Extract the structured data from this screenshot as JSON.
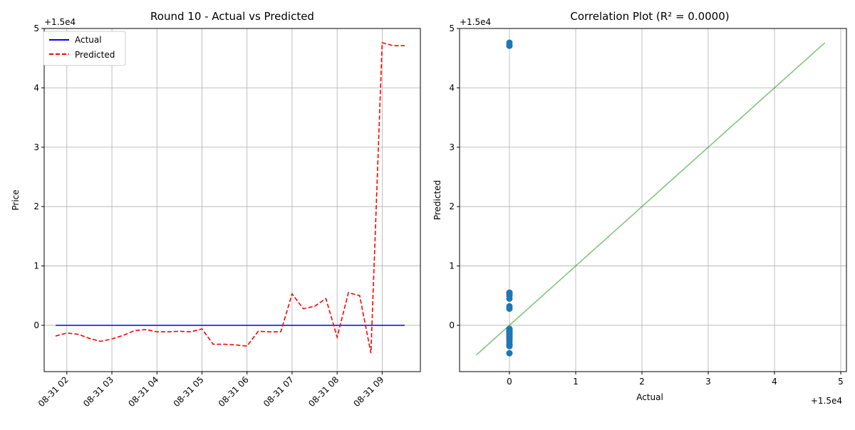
{
  "chart_data": [
    {
      "type": "line",
      "title": "Round 10 - Actual vs Predicted",
      "xlabel": "",
      "ylabel": "Price",
      "offset_label": "+1.5e4",
      "x_tick_labels": [
        "08-31 02",
        "08-31 03",
        "08-31 04",
        "08-31 05",
        "08-31 06",
        "08-31 07",
        "08-31 08",
        "08-31 09"
      ],
      "y_ticks": [
        0,
        1,
        2,
        3,
        4,
        5
      ],
      "ylim": [
        -0.78,
        5.0
      ],
      "grid": true,
      "legend_position": "upper-left",
      "x": [
        "08-31 01:45",
        "08-31 02:00",
        "08-31 02:15",
        "08-31 02:30",
        "08-31 02:45",
        "08-31 03:00",
        "08-31 03:15",
        "08-31 03:30",
        "08-31 03:45",
        "08-31 04:00",
        "08-31 04:15",
        "08-31 04:30",
        "08-31 04:45",
        "08-31 05:00",
        "08-31 05:15",
        "08-31 05:30",
        "08-31 05:45",
        "08-31 06:00",
        "08-31 06:15",
        "08-31 06:30",
        "08-31 06:45",
        "08-31 07:00",
        "08-31 07:15",
        "08-31 07:30",
        "08-31 07:45",
        "08-31 08:00",
        "08-31 08:15",
        "08-31 08:30",
        "08-31 08:45",
        "08-31 09:00",
        "08-31 09:15",
        "08-31 09:30"
      ],
      "series": [
        {
          "name": "Actual",
          "color": "#0000ff",
          "dash": "solid",
          "values": [
            0,
            0,
            0,
            0,
            0,
            0,
            0,
            0,
            0,
            0,
            0,
            0,
            0,
            0,
            0,
            0,
            0,
            0,
            0,
            0,
            0,
            0,
            0,
            0,
            0,
            0,
            0,
            0,
            0,
            0,
            0,
            0
          ]
        },
        {
          "name": "Predicted",
          "color": "#ff0000",
          "dash": "dashed",
          "values": [
            -0.18,
            -0.13,
            -0.15,
            -0.22,
            -0.27,
            -0.23,
            -0.17,
            -0.09,
            -0.07,
            -0.11,
            -0.11,
            -0.1,
            -0.11,
            -0.06,
            -0.32,
            -0.32,
            -0.33,
            -0.35,
            -0.1,
            -0.11,
            -0.11,
            0.53,
            0.28,
            0.32,
            0.45,
            -0.2,
            0.55,
            0.5,
            -0.47,
            4.76,
            4.71,
            4.71
          ]
        }
      ]
    },
    {
      "type": "scatter",
      "title": "Correlation Plot (R² = 0.0000)",
      "xlabel": "Actual",
      "ylabel": "Predicted",
      "offset_label_y": "+1.5e4",
      "offset_label_x": "+1.5e4",
      "x_ticks": [
        0,
        1,
        2,
        3,
        4,
        5
      ],
      "y_ticks": [
        0,
        1,
        2,
        3,
        4,
        5
      ],
      "xlim": [
        -0.5,
        5.0
      ],
      "ylim": [
        -0.78,
        5.0
      ],
      "grid": true,
      "point_color": "#1f77b4",
      "line_color": "#2ca02c",
      "points": {
        "x": [
          0,
          0,
          0,
          0,
          0,
          0,
          0,
          0,
          0,
          0,
          0,
          0,
          0,
          0,
          0,
          0,
          0,
          0,
          0,
          0,
          0,
          0,
          0,
          0,
          0,
          0,
          0,
          0,
          0,
          0,
          0,
          0
        ],
        "y": [
          -0.18,
          -0.13,
          -0.15,
          -0.22,
          -0.27,
          -0.23,
          -0.17,
          -0.09,
          -0.07,
          -0.11,
          -0.11,
          -0.1,
          -0.11,
          -0.06,
          -0.32,
          -0.32,
          -0.33,
          -0.35,
          -0.1,
          -0.11,
          -0.11,
          0.53,
          0.28,
          0.32,
          0.45,
          -0.2,
          0.55,
          0.5,
          -0.47,
          4.76,
          4.71,
          4.71
        ]
      },
      "reference_line": {
        "from": [
          -0.5,
          -0.5
        ],
        "to": [
          4.76,
          4.76
        ]
      }
    }
  ]
}
